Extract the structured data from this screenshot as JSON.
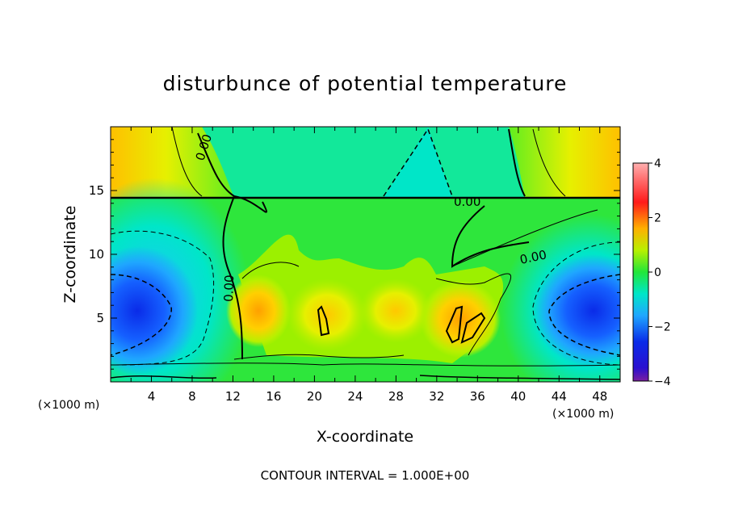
{
  "chart_data": {
    "type": "heatmap",
    "title": "disturbunce of potential temperature",
    "xlabel": "X-coordinate",
    "ylabel": "Z-coordinate",
    "x_unit_left": "(×1000 m)",
    "x_unit_right": "(×1000 m)",
    "xlim": [
      0,
      50
    ],
    "ylim": [
      0,
      20
    ],
    "x_ticks": [
      "4",
      "8",
      "12",
      "16",
      "20",
      "24",
      "28",
      "32",
      "36",
      "40",
      "44",
      "48"
    ],
    "y_ticks": [
      "5",
      "10",
      "15"
    ],
    "colorbar": {
      "range": [
        -4,
        4
      ],
      "ticks": [
        "4",
        "2",
        "0",
        "−2",
        "−4"
      ]
    },
    "contour_labels": [
      "0.00",
      "0.00",
      "0.00",
      "0.00"
    ],
    "footer": "CONTOUR INTERVAL = 1.000E+00",
    "grid": false,
    "colors": {
      "min": "#7a1fa0",
      "neg_strong": "#0a2be8",
      "neg": "#1fa6ff",
      "neg_weak": "#00e6c8",
      "zero": "#22e63a",
      "pos_weak": "#b8f000",
      "pos": "#ffb000",
      "pos_strong": "#ff1a1a",
      "max": "#ffb0b0"
    }
  }
}
